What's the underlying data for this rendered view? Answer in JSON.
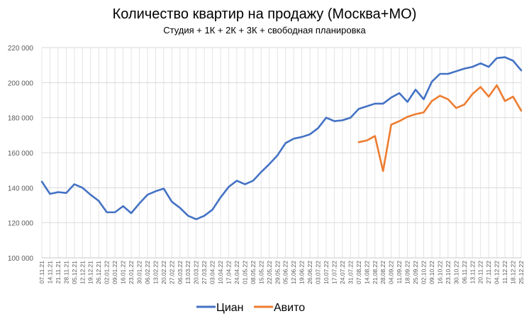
{
  "chart_data": {
    "type": "line",
    "title": "Количество квартир на продажу (Москва+МО)",
    "subtitle": "Студия + 1К + 2К + 3К + свободная планировка",
    "xlabel": "",
    "ylabel": "",
    "ylim": [
      100000,
      220000
    ],
    "ytick_step": 20000,
    "ytick_labels": [
      "100 000",
      "120 000",
      "140 000",
      "160 000",
      "180 000",
      "200 000",
      "220 000"
    ],
    "grid": true,
    "legend_position": "bottom",
    "x": [
      "07.11.21",
      "14.11.21",
      "21.11.21",
      "28.11.21",
      "05.12.21",
      "12.12.21",
      "19.12.21",
      "26.12.21",
      "02.01.22",
      "09.01.22",
      "16.01.22",
      "23.01.22",
      "30.01.22",
      "06.02.22",
      "13.02.22",
      "20.02.22",
      "27.02.22",
      "06.03.22",
      "13.03.22",
      "20.03.22",
      "27.03.22",
      "03.04.22",
      "10.04.22",
      "17.04.22",
      "24.04.22",
      "01.05.22",
      "08.05.22",
      "15.05.22",
      "22.05.22",
      "29.05.22",
      "05.06.22",
      "12.06.22",
      "19.06.22",
      "26.06.22",
      "03.07.22",
      "10.07.22",
      "17.07.22",
      "24.07.22",
      "31.07.22",
      "07.08.22",
      "14.08.22",
      "21.08.22",
      "28.08.22",
      "04.09.22",
      "11.09.22",
      "18.09.22",
      "25.09.22",
      "02.10.22",
      "09.10.22",
      "16.10.22",
      "23.10.22",
      "30.10.22",
      "06.11.22",
      "13.11.22",
      "20.11.22",
      "27.11.22",
      "04.12.22",
      "11.12.22",
      "18.12.22",
      "25.12.22"
    ],
    "series": [
      {
        "name": "Циан",
        "color": "#4472C4",
        "values": [
          143500,
          136500,
          137500,
          137000,
          142000,
          140000,
          136000,
          132500,
          126000,
          126000,
          129500,
          125500,
          131000,
          136000,
          138000,
          139500,
          132000,
          128500,
          124000,
          122000,
          124000,
          127500,
          134500,
          140500,
          144000,
          142000,
          144000,
          149000,
          153500,
          158500,
          165500,
          168000,
          169000,
          170500,
          174000,
          180000,
          178000,
          178500,
          180000,
          185000,
          186500,
          188000,
          188000,
          191500,
          194000,
          189000,
          196000,
          190500,
          200500,
          205000,
          205000,
          206500,
          208000,
          209000,
          211000,
          209000,
          214000,
          214500,
          212500,
          207000
        ]
      },
      {
        "name": "Авито",
        "color": "#ED7D31",
        "values": [
          null,
          null,
          null,
          null,
          null,
          null,
          null,
          null,
          null,
          null,
          null,
          null,
          null,
          null,
          null,
          null,
          null,
          null,
          null,
          null,
          null,
          null,
          null,
          null,
          null,
          null,
          null,
          null,
          null,
          null,
          null,
          null,
          null,
          null,
          null,
          null,
          null,
          null,
          null,
          166000,
          167000,
          169500,
          149500,
          176000,
          178000,
          180500,
          182000,
          183000,
          189500,
          192500,
          190500,
          185500,
          187500,
          193500,
          197500,
          192000,
          198500,
          189500,
          192000,
          184000
        ]
      }
    ]
  }
}
